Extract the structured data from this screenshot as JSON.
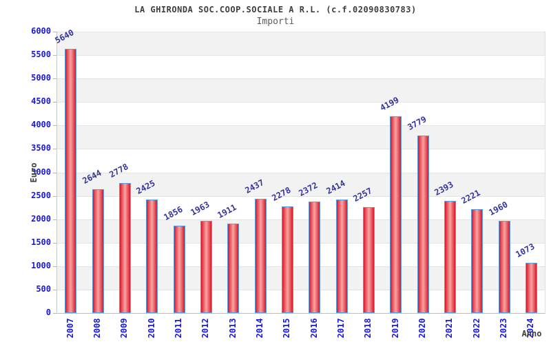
{
  "header": {
    "title": "LA GHIRONDA SOC.COOP.SOCIALE A R.L. (c.f.02090830783)",
    "subtitle": "Importi"
  },
  "chart_data": {
    "type": "bar",
    "title": "LA GHIRONDA SOC.COOP.SOCIALE A R.L. (c.f.02090830783)",
    "subtitle": "Importi",
    "xlabel": "Anno",
    "ylabel": "Euro",
    "categories": [
      "2007",
      "2008",
      "2009",
      "2010",
      "2011",
      "2012",
      "2013",
      "2014",
      "2015",
      "2016",
      "2017",
      "2018",
      "2019",
      "2020",
      "2021",
      "2022",
      "2023",
      "2024"
    ],
    "values": [
      5640,
      2644,
      2778,
      2425,
      1856,
      1963,
      1911,
      2437,
      2278,
      2372,
      2414,
      2257,
      4199,
      3779,
      2393,
      2221,
      1960,
      1073
    ],
    "ylim": [
      0,
      6000
    ],
    "ytick_step": 500,
    "grid": true,
    "legend": false,
    "band_step": 500,
    "colors": {
      "bar_edge": "#d8182b",
      "bar_mid": "#e95059",
      "bar_center": "#f6a6a4",
      "bar_border": "#57a0e8",
      "tick_label": "#1717dd",
      "value_label": "#3333a0",
      "band_fill": "#f2f2f2",
      "band_alt_fill": "#ffffff",
      "gridline": "#e3e3e3",
      "tick_mark": "#b5b5b5",
      "title_text": "#3d3d3d",
      "subtitle_text": "#5a5a5a",
      "axis_title_text": "#3f3f3f"
    }
  }
}
